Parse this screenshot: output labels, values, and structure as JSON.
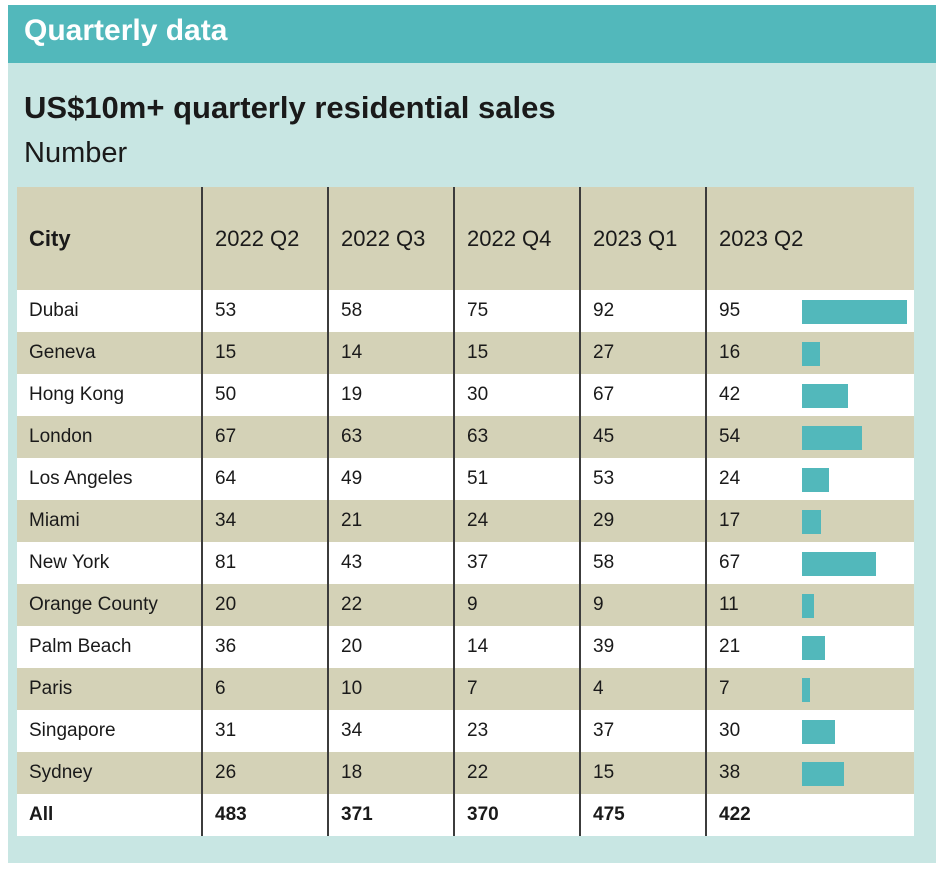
{
  "header": {
    "title": "Quarterly data"
  },
  "chart_data": {
    "type": "table",
    "title": "US$10m+ quarterly residential sales",
    "subtitle": "Number",
    "columns": [
      "City",
      "2022 Q2",
      "2022 Q3",
      "2022 Q4",
      "2023 Q1",
      "2023 Q2"
    ],
    "rows": [
      [
        "Dubai",
        "53",
        "58",
        "75",
        "92",
        "95"
      ],
      [
        "Geneva",
        "15",
        "14",
        "15",
        "27",
        "16"
      ],
      [
        "Hong Kong",
        "50",
        "19",
        "30",
        "67",
        "42"
      ],
      [
        "London",
        "67",
        "63",
        "63",
        "45",
        "54"
      ],
      [
        "Los Angeles",
        "64",
        "49",
        "51",
        "53",
        "24"
      ],
      [
        "Miami",
        "34",
        "21",
        "24",
        "29",
        "17"
      ],
      [
        "New York",
        "81",
        "43",
        "37",
        "58",
        "67"
      ],
      [
        "Orange County",
        "20",
        "22",
        "9",
        "9",
        "11"
      ],
      [
        "Palm Beach",
        "36",
        "20",
        "14",
        "39",
        "21"
      ],
      [
        "Paris",
        "6",
        "10",
        "7",
        "4",
        "7"
      ],
      [
        "Singapore",
        "31",
        "34",
        "23",
        "37",
        "30"
      ],
      [
        "Sydney",
        "26",
        "18",
        "22",
        "15",
        "38"
      ]
    ],
    "total": [
      "All",
      "483",
      "371",
      "370",
      "475",
      "422"
    ],
    "bar_series": {
      "name": "2023 Q2",
      "max": 95
    },
    "colors": {
      "bar": "#52b8bb",
      "band": "#d4d2b7",
      "panel": "#c8e6e3",
      "header": "#52b8bb"
    }
  }
}
